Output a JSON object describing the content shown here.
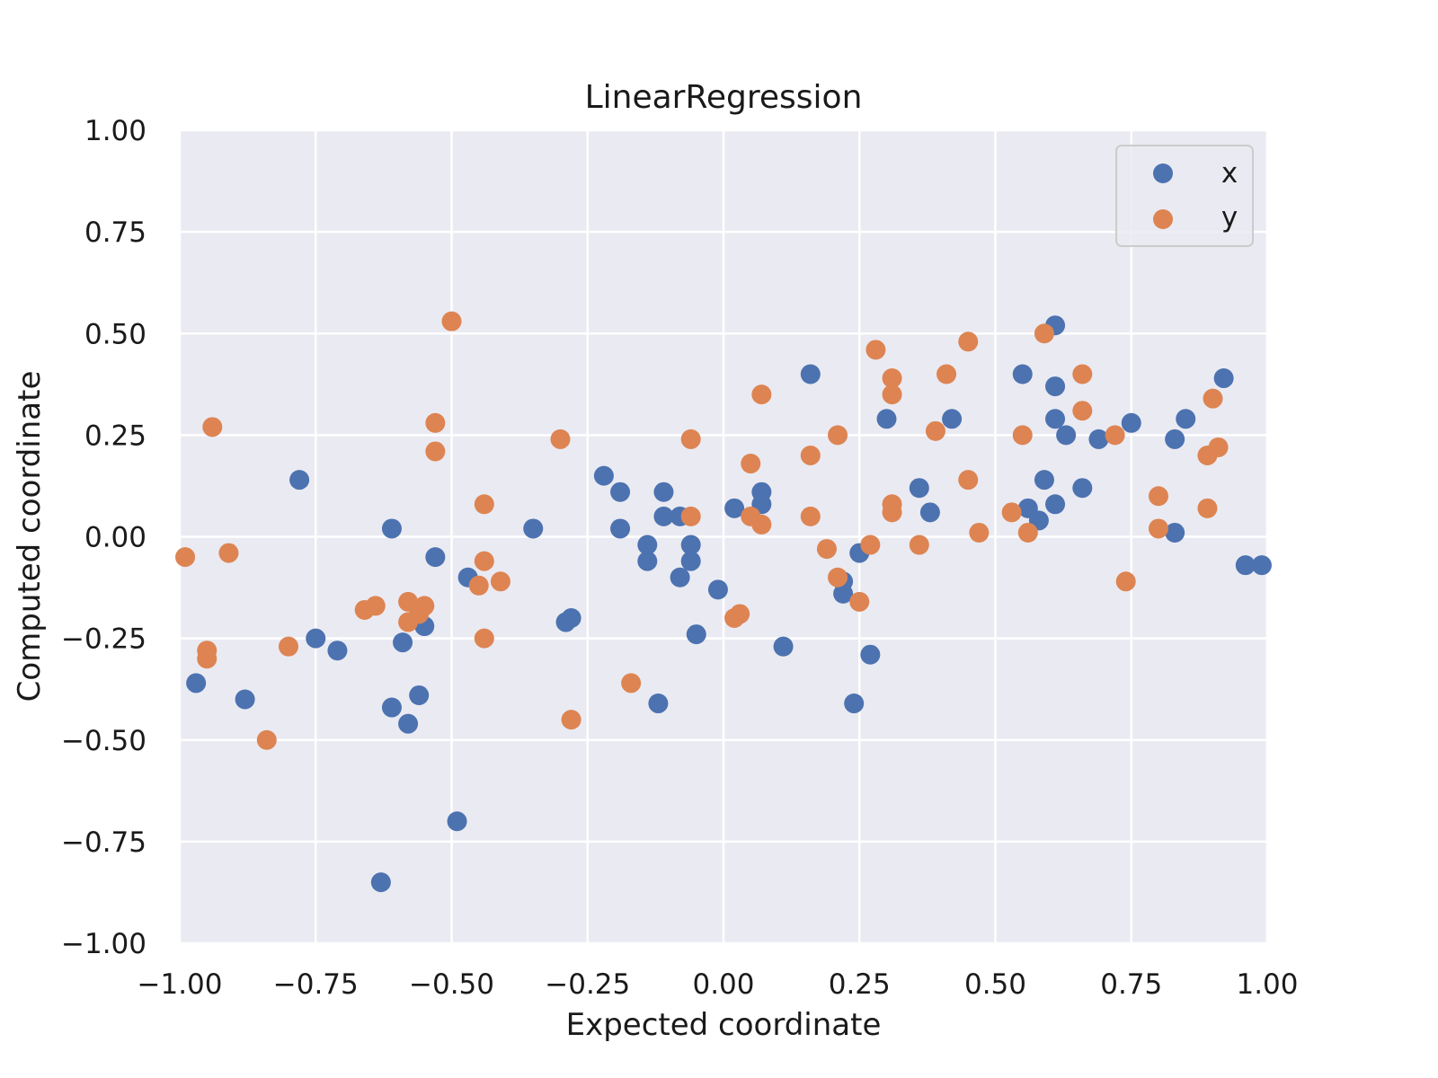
{
  "chart_data": {
    "type": "scatter",
    "title": "LinearRegression",
    "xlabel": "Expected coordinate",
    "ylabel": "Computed coordinate",
    "xlim": [
      -1.0,
      1.0
    ],
    "ylim": [
      -1.0,
      1.0
    ],
    "grid": true,
    "legend_position": "top-right",
    "x_ticks": [
      -1.0,
      -0.75,
      -0.5,
      -0.25,
      0.0,
      0.25,
      0.5,
      0.75,
      1.0
    ],
    "y_ticks": [
      -1.0,
      -0.75,
      -0.5,
      -0.25,
      0.0,
      0.25,
      0.5,
      0.75,
      1.0
    ],
    "x_tick_labels": [
      "−1.00",
      "−0.75",
      "−0.50",
      "−0.25",
      "0.00",
      "0.25",
      "0.50",
      "0.75",
      "1.00"
    ],
    "y_tick_labels": [
      "−1.00",
      "−0.75",
      "−0.50",
      "−0.25",
      "0.00",
      "0.25",
      "0.50",
      "0.75",
      "1.00"
    ],
    "series": [
      {
        "name": "x",
        "color": "#4c72b0",
        "points": [
          [
            -0.97,
            -0.36
          ],
          [
            -0.88,
            -0.4
          ],
          [
            -0.78,
            0.14
          ],
          [
            -0.75,
            -0.25
          ],
          [
            -0.71,
            -0.28
          ],
          [
            -0.61,
            0.02
          ],
          [
            -0.61,
            -0.42
          ],
          [
            -0.59,
            -0.26
          ],
          [
            -0.58,
            -0.46
          ],
          [
            -0.56,
            -0.39
          ],
          [
            -0.55,
            -0.22
          ],
          [
            -0.53,
            -0.05
          ],
          [
            -0.47,
            -0.1
          ],
          [
            -0.49,
            -0.7
          ],
          [
            -0.63,
            -0.85
          ],
          [
            -0.35,
            0.02
          ],
          [
            -0.29,
            -0.21
          ],
          [
            -0.28,
            -0.2
          ],
          [
            -0.22,
            0.15
          ],
          [
            -0.19,
            0.11
          ],
          [
            -0.19,
            0.02
          ],
          [
            -0.14,
            -0.02
          ],
          [
            -0.14,
            -0.06
          ],
          [
            -0.12,
            -0.41
          ],
          [
            -0.11,
            0.11
          ],
          [
            -0.11,
            0.05
          ],
          [
            -0.08,
            0.05
          ],
          [
            -0.08,
            -0.1
          ],
          [
            -0.06,
            -0.02
          ],
          [
            -0.06,
            -0.06
          ],
          [
            -0.05,
            -0.24
          ],
          [
            -0.01,
            -0.13
          ],
          [
            0.02,
            0.07
          ],
          [
            0.07,
            0.08
          ],
          [
            0.07,
            0.11
          ],
          [
            0.11,
            -0.27
          ],
          [
            0.16,
            0.4
          ],
          [
            0.22,
            -0.11
          ],
          [
            0.22,
            -0.14
          ],
          [
            0.24,
            -0.41
          ],
          [
            0.25,
            -0.04
          ],
          [
            0.27,
            -0.29
          ],
          [
            0.3,
            0.29
          ],
          [
            0.36,
            0.12
          ],
          [
            0.38,
            0.06
          ],
          [
            0.42,
            0.29
          ],
          [
            0.55,
            0.4
          ],
          [
            0.56,
            0.07
          ],
          [
            0.58,
            0.04
          ],
          [
            0.59,
            0.14
          ],
          [
            0.61,
            0.52
          ],
          [
            0.61,
            0.37
          ],
          [
            0.61,
            0.29
          ],
          [
            0.61,
            0.08
          ],
          [
            0.63,
            0.25
          ],
          [
            0.66,
            0.12
          ],
          [
            0.69,
            0.24
          ],
          [
            0.75,
            0.28
          ],
          [
            0.83,
            0.24
          ],
          [
            0.83,
            0.01
          ],
          [
            0.85,
            0.29
          ],
          [
            0.92,
            0.39
          ],
          [
            0.96,
            -0.07
          ],
          [
            0.99,
            -0.07
          ]
        ]
      },
      {
        "name": "y",
        "color": "#dd8452",
        "points": [
          [
            -0.99,
            -0.05
          ],
          [
            -0.95,
            -0.28
          ],
          [
            -0.95,
            -0.3
          ],
          [
            -0.94,
            0.27
          ],
          [
            -0.91,
            -0.04
          ],
          [
            -0.84,
            -0.5
          ],
          [
            -0.8,
            -0.27
          ],
          [
            -0.66,
            -0.18
          ],
          [
            -0.64,
            -0.17
          ],
          [
            -0.58,
            -0.16
          ],
          [
            -0.58,
            -0.21
          ],
          [
            -0.56,
            -0.19
          ],
          [
            -0.55,
            -0.17
          ],
          [
            -0.53,
            0.28
          ],
          [
            -0.53,
            0.21
          ],
          [
            -0.5,
            0.53
          ],
          [
            -0.45,
            -0.12
          ],
          [
            -0.44,
            0.08
          ],
          [
            -0.44,
            -0.06
          ],
          [
            -0.44,
            -0.25
          ],
          [
            -0.41,
            -0.11
          ],
          [
            -0.3,
            0.24
          ],
          [
            -0.28,
            -0.45
          ],
          [
            -0.17,
            -0.36
          ],
          [
            -0.06,
            0.24
          ],
          [
            -0.06,
            0.05
          ],
          [
            0.02,
            -0.2
          ],
          [
            0.03,
            -0.19
          ],
          [
            0.05,
            0.18
          ],
          [
            0.05,
            0.05
          ],
          [
            0.07,
            0.35
          ],
          [
            0.07,
            0.03
          ],
          [
            0.16,
            0.2
          ],
          [
            0.16,
            0.05
          ],
          [
            0.19,
            -0.03
          ],
          [
            0.21,
            0.25
          ],
          [
            0.21,
            -0.1
          ],
          [
            0.25,
            -0.16
          ],
          [
            0.27,
            -0.02
          ],
          [
            0.28,
            0.46
          ],
          [
            0.31,
            0.39
          ],
          [
            0.31,
            0.35
          ],
          [
            0.31,
            0.08
          ],
          [
            0.31,
            0.06
          ],
          [
            0.36,
            -0.02
          ],
          [
            0.39,
            0.26
          ],
          [
            0.41,
            0.4
          ],
          [
            0.45,
            0.48
          ],
          [
            0.45,
            0.14
          ],
          [
            0.47,
            0.01
          ],
          [
            0.53,
            0.06
          ],
          [
            0.55,
            0.25
          ],
          [
            0.56,
            0.01
          ],
          [
            0.59,
            0.5
          ],
          [
            0.66,
            0.4
          ],
          [
            0.66,
            0.31
          ],
          [
            0.72,
            0.25
          ],
          [
            0.74,
            -0.11
          ],
          [
            0.8,
            0.1
          ],
          [
            0.8,
            0.02
          ],
          [
            0.89,
            0.2
          ],
          [
            0.89,
            0.07
          ],
          [
            0.9,
            0.34
          ],
          [
            0.91,
            0.22
          ]
        ]
      }
    ]
  }
}
